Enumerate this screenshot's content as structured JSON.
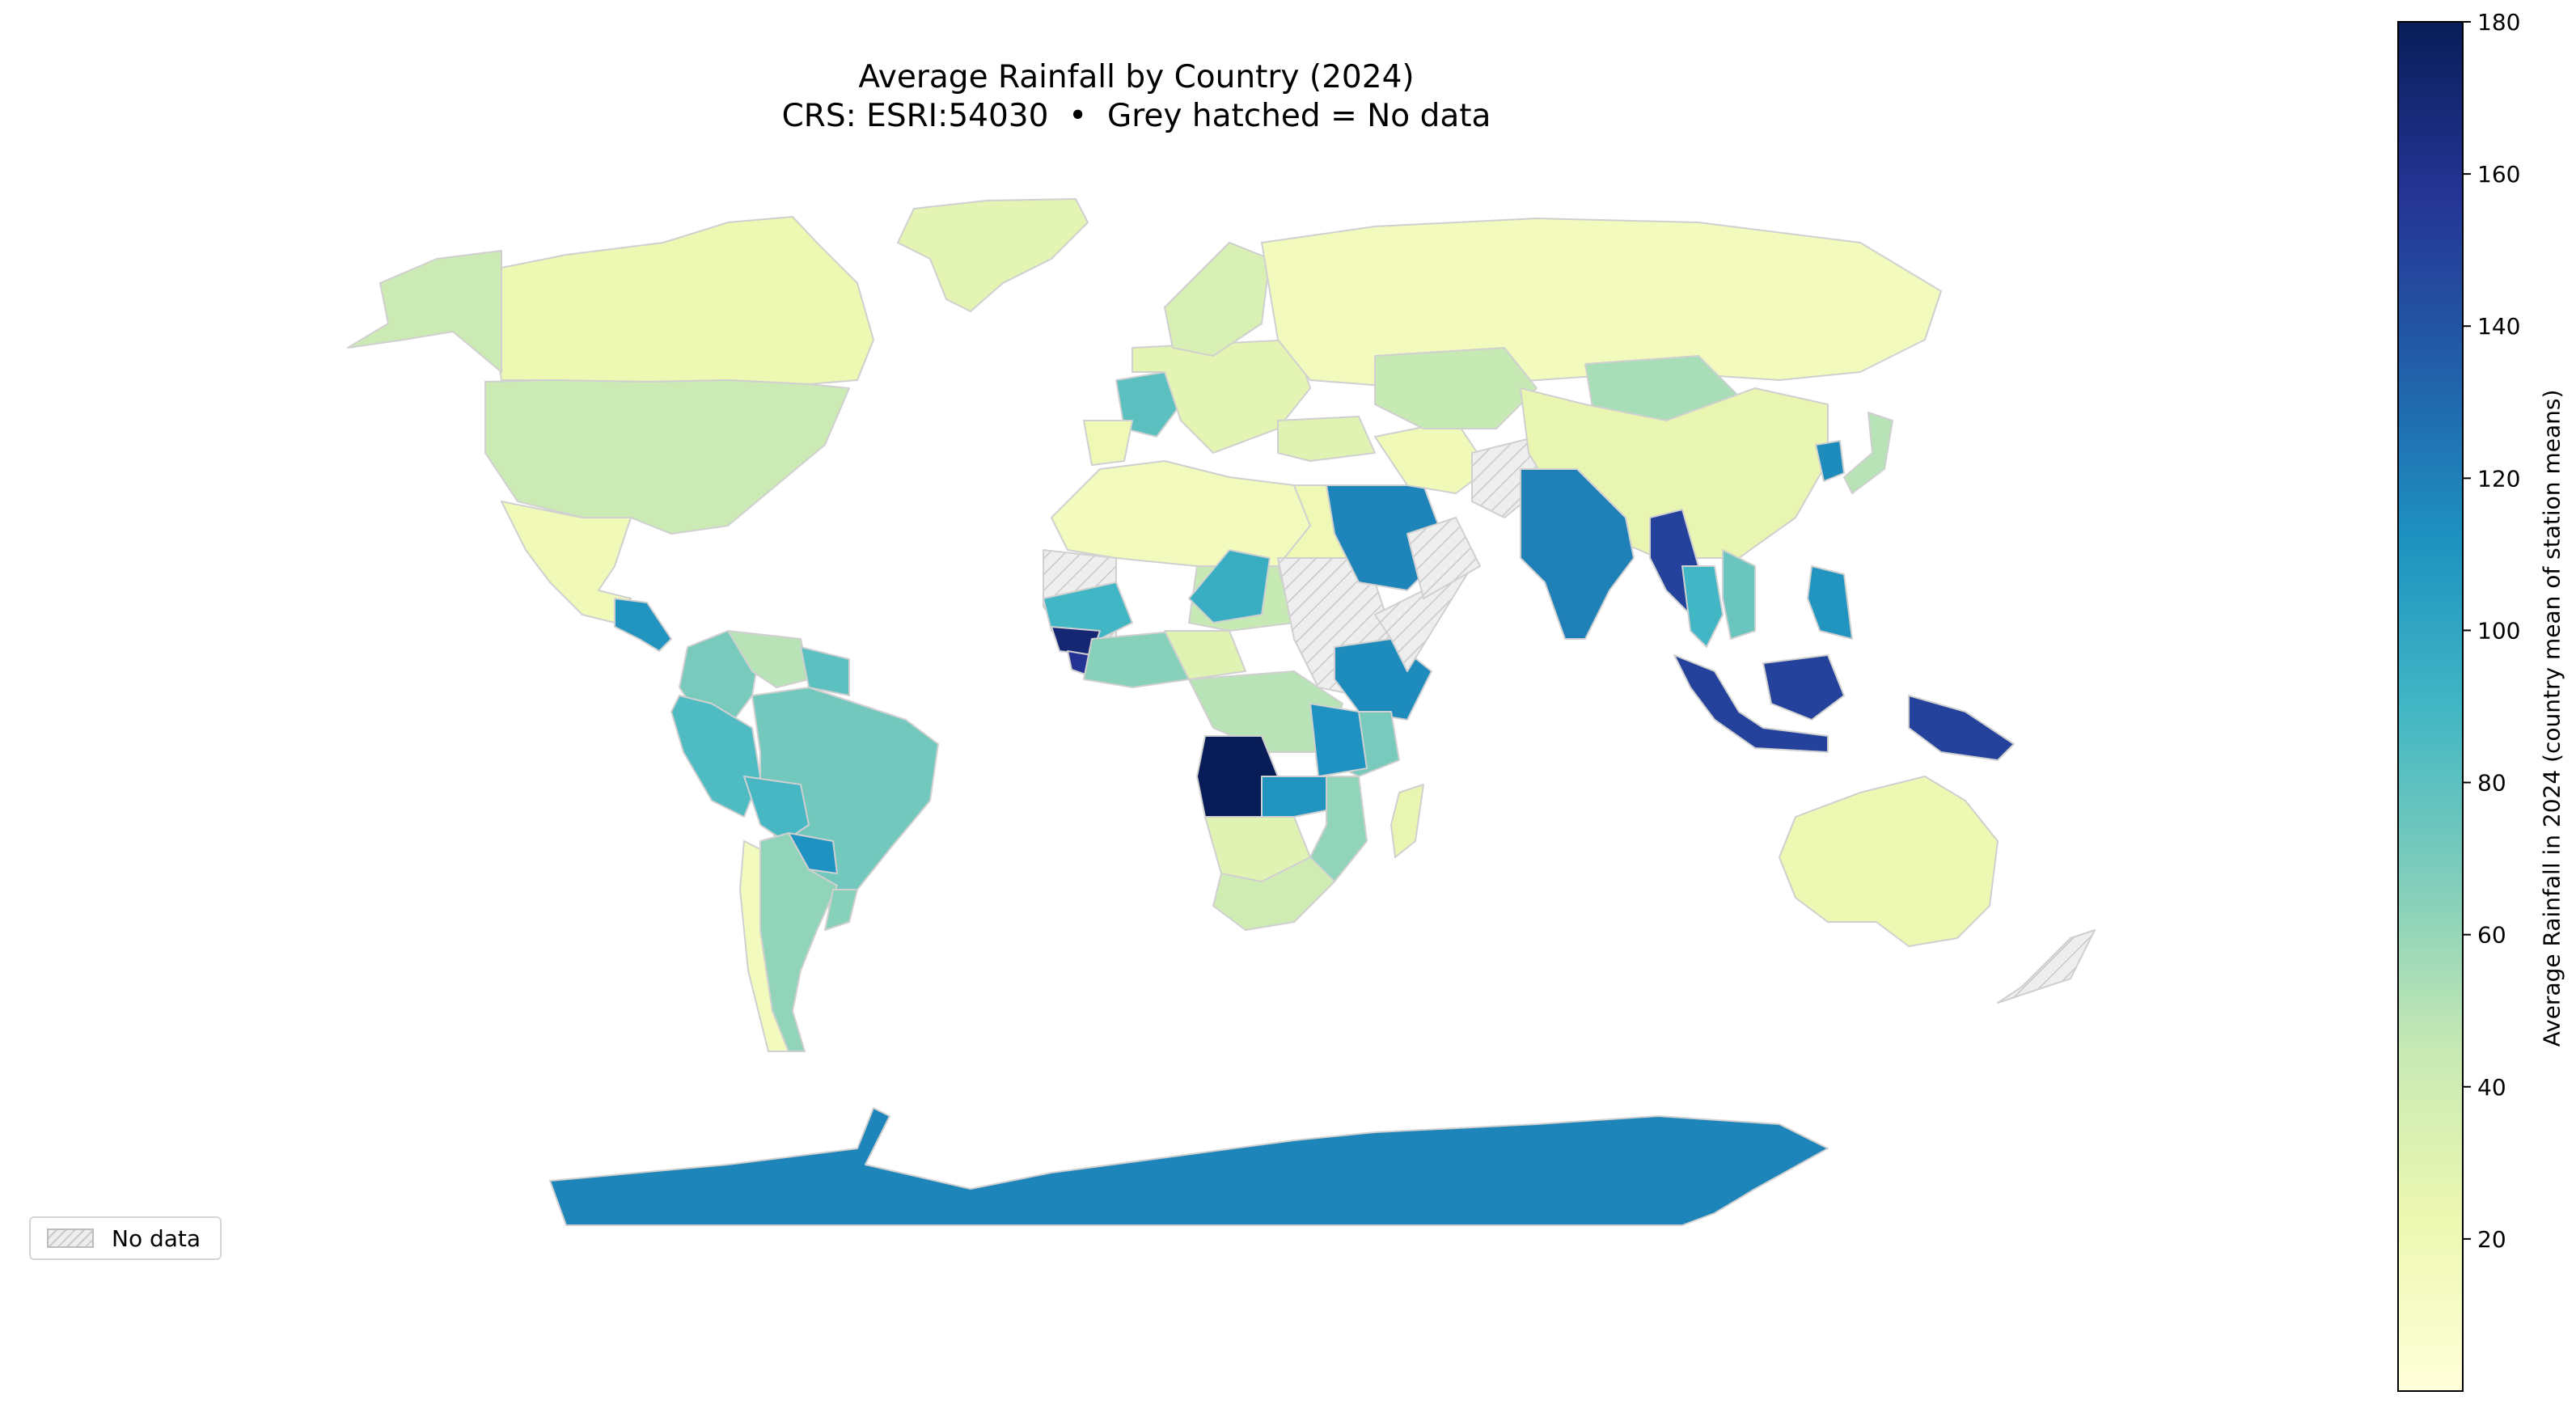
{
  "title": "Average Rainfall by Country (2024)",
  "subtitle": "CRS: ESRI:54030  •  Grey hatched = No data",
  "legend": {
    "no_data_label": "No data"
  },
  "colorbar": {
    "label": "Average Rainfall in 2024 (country mean of station means)",
    "min": 0,
    "max": 180,
    "ticks": [
      20,
      40,
      60,
      80,
      100,
      120,
      140,
      160,
      180
    ],
    "colormap": "YlGnBu",
    "stops": [
      "#ffffd9",
      "#edf8b1",
      "#c7e9b4",
      "#7fcdbb",
      "#41b6c4",
      "#1d91c0",
      "#225ea8",
      "#253494",
      "#081d58"
    ]
  },
  "colors": {
    "no_data_fill": "#eeeeee",
    "no_data_hatch": "#c8c8c8",
    "border": "#d0d0d0"
  },
  "chart_data": {
    "type": "choropleth",
    "title": "Average Rainfall by Country (2024)",
    "subtitle": "CRS: ESRI:54030  •  Grey hatched = No data",
    "projection": "ESRI:54030 (Robinson)",
    "colorbar_label": "Average Rainfall in 2024 (country mean of station means)",
    "value_range": [
      0,
      180
    ],
    "colormap": "YlGnBu",
    "regions": [
      {
        "name": "Greenland",
        "value": 28
      },
      {
        "name": "Canada",
        "value": 22
      },
      {
        "name": "Alaska",
        "value": 42
      },
      {
        "name": "United States",
        "value": 42
      },
      {
        "name": "Mexico",
        "value": 18
      },
      {
        "name": "Central America",
        "value": 110
      },
      {
        "name": "Colombia",
        "value": 70
      },
      {
        "name": "Venezuela",
        "value": 50
      },
      {
        "name": "Guianas",
        "value": 80
      },
      {
        "name": "Ecuador / Peru",
        "value": 85
      },
      {
        "name": "Brazil",
        "value": 72
      },
      {
        "name": "Bolivia",
        "value": 88
      },
      {
        "name": "Paraguay",
        "value": 112
      },
      {
        "name": "Chile",
        "value": 15
      },
      {
        "name": "Argentina",
        "value": 62
      },
      {
        "name": "Uruguay / S. Brazil",
        "value": 65
      },
      {
        "name": "Morocco / Algeria / Libya",
        "value": 15
      },
      {
        "name": "Egypt",
        "value": 20
      },
      {
        "name": "Mauritania / Mali",
        "value": null
      },
      {
        "name": "Niger",
        "value": 45
      },
      {
        "name": "Chad",
        "value": 95
      },
      {
        "name": "Sudan",
        "value": null
      },
      {
        "name": "Senegal / Gambia",
        "value": 90
      },
      {
        "name": "Guinea / Sierra Leone",
        "value": 170
      },
      {
        "name": "Liberia",
        "value": 158
      },
      {
        "name": "Nigeria",
        "value": 65
      },
      {
        "name": "Central African Republic",
        "value": 30
      },
      {
        "name": "Congo Basin / DRC",
        "value": 50
      },
      {
        "name": "Ethiopia",
        "value": 115
      },
      {
        "name": "Somalia",
        "value": null
      },
      {
        "name": "Kenya",
        "value": 70
      },
      {
        "name": "Tanzania",
        "value": 112
      },
      {
        "name": "Angola",
        "value": 180
      },
      {
        "name": "Zambia",
        "value": 110
      },
      {
        "name": "Mozambique",
        "value": 62
      },
      {
        "name": "Namibia / Botswana",
        "value": 30
      },
      {
        "name": "South Africa",
        "value": 40
      },
      {
        "name": "Madagascar",
        "value": 25
      },
      {
        "name": "France",
        "value": 80
      },
      {
        "name": "Iberia",
        "value": 20
      },
      {
        "name": "Europe (other)",
        "value": 28
      },
      {
        "name": "Scandinavia",
        "value": 35
      },
      {
        "name": "Russia",
        "value": 15
      },
      {
        "name": "Turkey",
        "value": 30
      },
      {
        "name": "Saudi Arabia",
        "value": 118
      },
      {
        "name": "Oman / Yemen",
        "value": null
      },
      {
        "name": "Iran",
        "value": 18
      },
      {
        "name": "Afghanistan / Pakistan",
        "value": null
      },
      {
        "name": "Central Asia",
        "value": 45
      },
      {
        "name": "Mongolia",
        "value": 55
      },
      {
        "name": "China",
        "value": 25
      },
      {
        "name": "Korea",
        "value": 115
      },
      {
        "name": "Japan",
        "value": 50
      },
      {
        "name": "India",
        "value": 120
      },
      {
        "name": "Myanmar",
        "value": 150
      },
      {
        "name": "Thailand",
        "value": 90
      },
      {
        "name": "Vietnam",
        "value": 75
      },
      {
        "name": "Philippines",
        "value": 110
      },
      {
        "name": "Indonesia (Sumatra/Java)",
        "value": 150
      },
      {
        "name": "Borneo",
        "value": 150
      },
      {
        "name": "New Guinea",
        "value": 150
      },
      {
        "name": "Australia",
        "value": 22
      },
      {
        "name": "New Zealand",
        "value": null
      },
      {
        "name": "Antarctica",
        "value": 118
      }
    ]
  }
}
